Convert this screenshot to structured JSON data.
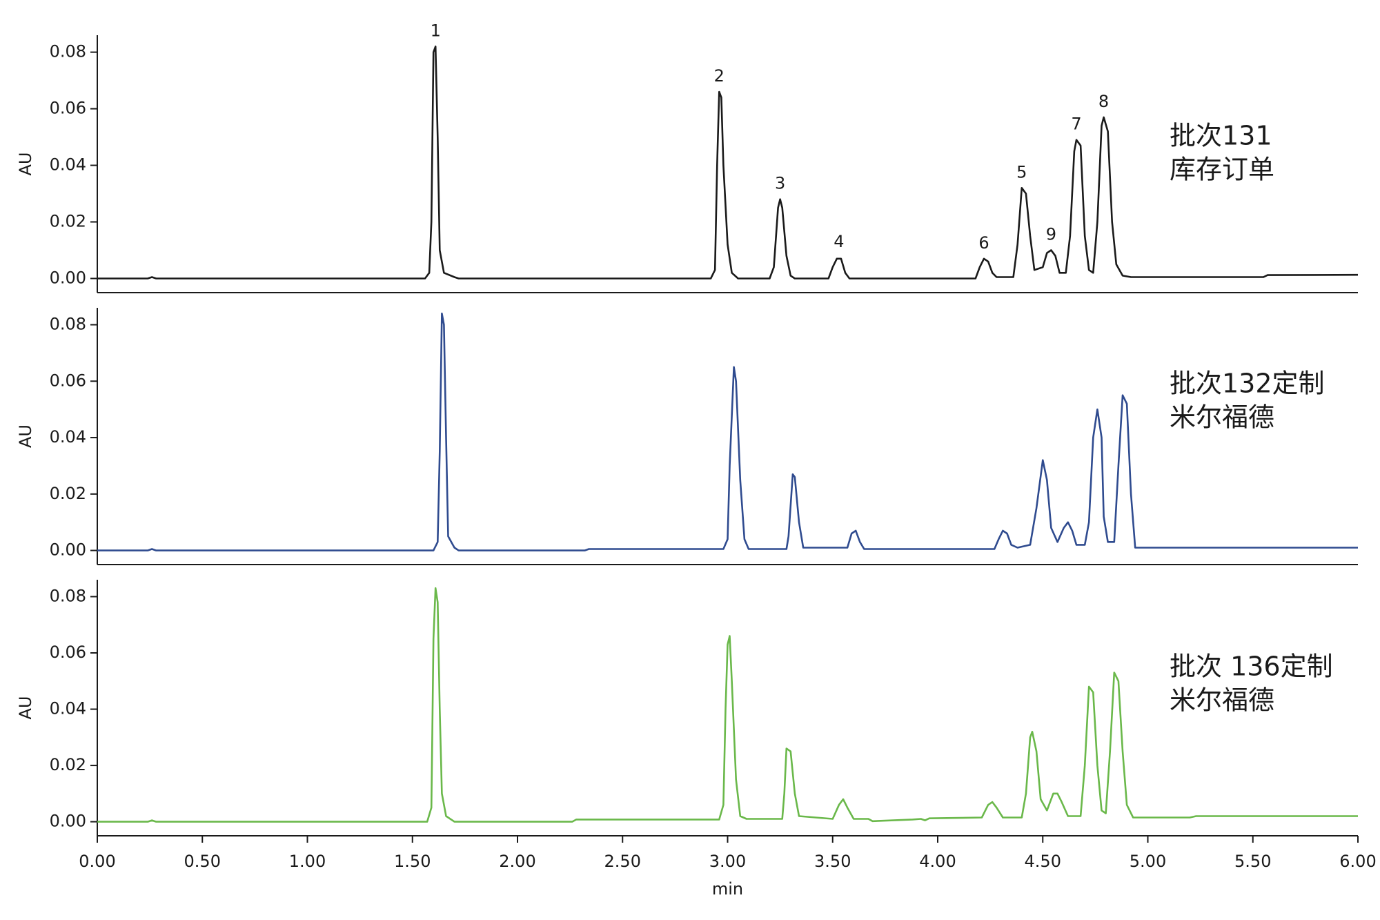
{
  "chart_data": [
    {
      "type": "line",
      "ylabel": "AU",
      "xlim": [
        0,
        6
      ],
      "ylim": [
        -0.005,
        0.086
      ],
      "yticks": [
        {
          "value": 0,
          "label": "0.00"
        },
        {
          "value": 0.02,
          "label": "0.02"
        },
        {
          "value": 0.04,
          "label": "0.04"
        },
        {
          "value": 0.06,
          "label": "0.06"
        },
        {
          "value": 0.08,
          "label": "0.08"
        }
      ],
      "x": [
        0,
        0.24,
        0.26,
        0.28,
        1.56,
        1.58,
        1.59,
        1.6,
        1.61,
        1.62,
        1.63,
        1.65,
        1.7,
        1.72,
        2.92,
        2.94,
        2.95,
        2.96,
        2.97,
        2.98,
        3.0,
        3.02,
        3.05,
        3.2,
        3.22,
        3.24,
        3.25,
        3.26,
        3.28,
        3.3,
        3.32,
        3.48,
        3.5,
        3.52,
        3.54,
        3.56,
        3.58,
        4.18,
        4.2,
        4.22,
        4.24,
        4.26,
        4.28,
        4.36,
        4.38,
        4.4,
        4.42,
        4.44,
        4.46,
        4.5,
        4.52,
        4.54,
        4.56,
        4.58,
        4.61,
        4.63,
        4.65,
        4.66,
        4.68,
        4.7,
        4.72,
        4.74,
        4.76,
        4.78,
        4.79,
        4.81,
        4.83,
        4.85,
        4.88,
        4.92,
        5.55,
        5.57,
        6.0
      ],
      "series": [
        {
          "name_lines": [
            "批次131",
            "库存订单"
          ],
          "color": "#1a1a1a",
          "values": [
            0,
            0,
            0.0005,
            0,
            0,
            0.002,
            0.02,
            0.08,
            0.082,
            0.05,
            0.01,
            0.002,
            0.0005,
            0,
            0,
            0.003,
            0.04,
            0.066,
            0.064,
            0.04,
            0.012,
            0.002,
            0,
            0,
            0.004,
            0.025,
            0.028,
            0.025,
            0.008,
            0.001,
            0,
            0,
            0.004,
            0.007,
            0.007,
            0.002,
            0,
            0,
            0.004,
            0.007,
            0.006,
            0.002,
            0.0005,
            0.0005,
            0.012,
            0.032,
            0.03,
            0.015,
            0.003,
            0.004,
            0.009,
            0.01,
            0.008,
            0.002,
            0.002,
            0.015,
            0.045,
            0.049,
            0.047,
            0.015,
            0.003,
            0.002,
            0.02,
            0.054,
            0.057,
            0.052,
            0.02,
            0.005,
            0.001,
            0.0005,
            0.0005,
            0.0012,
            0.0013
          ]
        }
      ],
      "annotations": [
        {
          "text": "1",
          "x": 1.61,
          "y": 0.082
        },
        {
          "text": "2",
          "x": 2.96,
          "y": 0.066
        },
        {
          "text": "3",
          "x": 3.25,
          "y": 0.028
        },
        {
          "text": "4",
          "x": 3.53,
          "y": 0.0075
        },
        {
          "text": "6",
          "x": 4.22,
          "y": 0.007
        },
        {
          "text": "5",
          "x": 4.4,
          "y": 0.032
        },
        {
          "text": "9",
          "x": 4.54,
          "y": 0.01
        },
        {
          "text": "7",
          "x": 4.66,
          "y": 0.049
        },
        {
          "text": "8",
          "x": 4.79,
          "y": 0.057
        }
      ]
    },
    {
      "type": "line",
      "ylabel": "AU",
      "xlim": [
        0,
        6
      ],
      "ylim": [
        -0.005,
        0.086
      ],
      "yticks": [
        {
          "value": 0,
          "label": "0.00"
        },
        {
          "value": 0.02,
          "label": "0.02"
        },
        {
          "value": 0.04,
          "label": "0.04"
        },
        {
          "value": 0.06,
          "label": "0.06"
        },
        {
          "value": 0.08,
          "label": "0.08"
        }
      ],
      "x": [
        0,
        0.24,
        0.26,
        0.28,
        1.6,
        1.62,
        1.63,
        1.64,
        1.65,
        1.66,
        1.67,
        1.7,
        1.72,
        2.32,
        2.34,
        2.98,
        3.0,
        3.01,
        3.03,
        3.04,
        3.06,
        3.08,
        3.1,
        3.28,
        3.29,
        3.31,
        3.32,
        3.34,
        3.36,
        3.57,
        3.59,
        3.61,
        3.63,
        3.65,
        4.27,
        4.29,
        4.31,
        4.33,
        4.35,
        4.38,
        4.44,
        4.47,
        4.5,
        4.52,
        4.54,
        4.57,
        4.6,
        4.62,
        4.64,
        4.66,
        4.7,
        4.72,
        4.74,
        4.76,
        4.78,
        4.79,
        4.81,
        4.84,
        4.86,
        4.88,
        4.9,
        4.92,
        4.94,
        6.0
      ],
      "series": [
        {
          "name_lines": [
            "批次132定制",
            "米尔福德"
          ],
          "color": "#2f4b8f",
          "values": [
            0,
            0,
            0.0005,
            0,
            0,
            0.003,
            0.035,
            0.084,
            0.08,
            0.04,
            0.005,
            0.001,
            0,
            0,
            0.0005,
            0.0005,
            0.004,
            0.03,
            0.065,
            0.06,
            0.025,
            0.004,
            0.0005,
            0.0005,
            0.005,
            0.027,
            0.026,
            0.01,
            0.001,
            0.001,
            0.006,
            0.007,
            0.003,
            0.0005,
            0.0005,
            0.004,
            0.007,
            0.006,
            0.002,
            0.001,
            0.002,
            0.015,
            0.032,
            0.025,
            0.008,
            0.003,
            0.008,
            0.01,
            0.007,
            0.002,
            0.002,
            0.01,
            0.04,
            0.05,
            0.04,
            0.012,
            0.003,
            0.003,
            0.03,
            0.055,
            0.052,
            0.02,
            0.001,
            0.001
          ]
        }
      ]
    },
    {
      "type": "line",
      "ylabel": "AU",
      "xlabel": "min",
      "xlim": [
        0,
        6
      ],
      "ylim": [
        -0.005,
        0.086
      ],
      "yticks": [
        {
          "value": 0,
          "label": "0.00"
        },
        {
          "value": 0.02,
          "label": "0.02"
        },
        {
          "value": 0.04,
          "label": "0.04"
        },
        {
          "value": 0.06,
          "label": "0.06"
        },
        {
          "value": 0.08,
          "label": "0.08"
        }
      ],
      "xticks": [
        {
          "value": 0,
          "label": "0.00"
        },
        {
          "value": 0.5,
          "label": "0.50"
        },
        {
          "value": 1,
          "label": "1.00"
        },
        {
          "value": 1.5,
          "label": "1.50"
        },
        {
          "value": 2,
          "label": "2.00"
        },
        {
          "value": 2.5,
          "label": "2.50"
        },
        {
          "value": 3,
          "label": "3.00"
        },
        {
          "value": 3.5,
          "label": "3.50"
        },
        {
          "value": 4,
          "label": "4.00"
        },
        {
          "value": 4.5,
          "label": "4.50"
        },
        {
          "value": 5,
          "label": "5.00"
        },
        {
          "value": 5.5,
          "label": "5.50"
        },
        {
          "value": 6,
          "label": "6.00"
        }
      ],
      "x": [
        0,
        0.24,
        0.26,
        0.28,
        1.57,
        1.59,
        1.6,
        1.61,
        1.62,
        1.63,
        1.64,
        1.66,
        1.7,
        2.26,
        2.28,
        2.96,
        2.98,
        2.99,
        3.0,
        3.01,
        3.02,
        3.04,
        3.06,
        3.09,
        3.26,
        3.27,
        3.28,
        3.3,
        3.32,
        3.34,
        3.5,
        3.53,
        3.55,
        3.57,
        3.6,
        3.67,
        3.69,
        3.88,
        3.92,
        3.94,
        3.96,
        4.21,
        4.24,
        4.26,
        4.28,
        4.31,
        4.4,
        4.42,
        4.44,
        4.45,
        4.47,
        4.49,
        4.52,
        4.55,
        4.57,
        4.59,
        4.62,
        4.68,
        4.7,
        4.72,
        4.74,
        4.76,
        4.78,
        4.8,
        4.82,
        4.84,
        4.86,
        4.88,
        4.9,
        4.93,
        5.2,
        5.23,
        6.0
      ],
      "series": [
        {
          "name_lines": [
            "批次 136定制",
            "米尔福德"
          ],
          "color": "#6ab84a",
          "values": [
            0,
            0,
            0.0005,
            0,
            0,
            0.005,
            0.065,
            0.083,
            0.078,
            0.04,
            0.01,
            0.002,
            0,
            0,
            0.0008,
            0.0008,
            0.006,
            0.04,
            0.063,
            0.066,
            0.05,
            0.015,
            0.002,
            0.001,
            0.001,
            0.01,
            0.026,
            0.025,
            0.01,
            0.002,
            0.001,
            0.006,
            0.008,
            0.005,
            0.001,
            0.001,
            0.0002,
            0.0008,
            0.001,
            0.0005,
            0.0012,
            0.0015,
            0.006,
            0.007,
            0.005,
            0.0015,
            0.0015,
            0.01,
            0.03,
            0.032,
            0.025,
            0.008,
            0.004,
            0.01,
            0.01,
            0.007,
            0.002,
            0.002,
            0.02,
            0.048,
            0.046,
            0.02,
            0.004,
            0.003,
            0.025,
            0.053,
            0.05,
            0.025,
            0.006,
            0.0015,
            0.0015,
            0.002,
            0.002
          ]
        }
      ]
    }
  ]
}
